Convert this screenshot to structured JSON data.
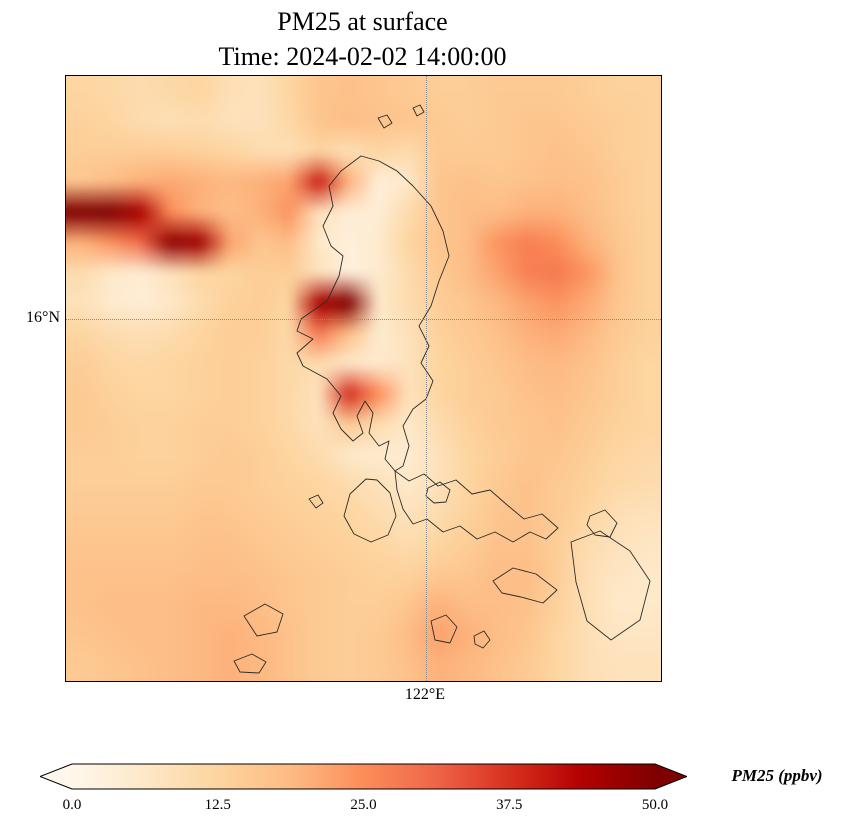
{
  "title": {
    "line1": "PM25 at surface",
    "line2": "Time: 2024-02-02 14:00:00"
  },
  "axes": {
    "ytick": "16°N",
    "xtick": "122°E"
  },
  "colorbar": {
    "label": "PM25 (ppbv)",
    "ticks": [
      "0.0",
      "12.5",
      "25.0",
      "37.5",
      "50.0"
    ],
    "min": 0,
    "max": 50,
    "extend": "both"
  },
  "chart_data": {
    "type": "heatmap",
    "title": "PM25 at surface",
    "subtitle": "Time: 2024-02-02 14:00:00",
    "variable": "PM25",
    "units": "ppbv",
    "colormap": "OrRd",
    "colormap_stops": [
      [
        0.0,
        "#fff7ec"
      ],
      [
        0.125,
        "#fee8c8"
      ],
      [
        0.25,
        "#fdd49e"
      ],
      [
        0.375,
        "#fdbb84"
      ],
      [
        0.5,
        "#fc8d59"
      ],
      [
        0.625,
        "#ef6548"
      ],
      [
        0.75,
        "#d7301f"
      ],
      [
        0.875,
        "#b30000"
      ],
      [
        1.0,
        "#7f0000"
      ]
    ],
    "coastline_color": "#2b2b2b",
    "vmin": 0,
    "vmax": 50,
    "gridlines": {
      "lat_label": "16°N",
      "lat_frac_from_top": 0.402,
      "lon_label": "122°E",
      "lon_frac_from_left": 0.605
    },
    "grid_shape": [
      20,
      20
    ],
    "values": [
      [
        12,
        11,
        10,
        11,
        12,
        9,
        8,
        12,
        16,
        17,
        16,
        15,
        14,
        14,
        15,
        15,
        15,
        14,
        13,
        13
      ],
      [
        13,
        12,
        10,
        9,
        10,
        8,
        8,
        11,
        16,
        18,
        17,
        16,
        15,
        14,
        15,
        16,
        16,
        15,
        14,
        13
      ],
      [
        14,
        14,
        14,
        14,
        13,
        12,
        10,
        9,
        12,
        9,
        12,
        10,
        15,
        15,
        15,
        16,
        17,
        16,
        14,
        13
      ],
      [
        16,
        18,
        20,
        21,
        20,
        19,
        20,
        22,
        40,
        20,
        3,
        6,
        16,
        17,
        16,
        17,
        18,
        17,
        15,
        13
      ],
      [
        50,
        54,
        45,
        25,
        20,
        18,
        20,
        24,
        8,
        4,
        4,
        10,
        16,
        18,
        18,
        20,
        20,
        18,
        15,
        13
      ],
      [
        20,
        24,
        30,
        48,
        46,
        22,
        16,
        18,
        6,
        3,
        5,
        12,
        16,
        18,
        24,
        27,
        25,
        20,
        16,
        13
      ],
      [
        10,
        6,
        4,
        8,
        12,
        12,
        14,
        14,
        8,
        3,
        5,
        10,
        15,
        18,
        22,
        27,
        28,
        24,
        17,
        13
      ],
      [
        8,
        5,
        4,
        6,
        10,
        13,
        14,
        12,
        45,
        50,
        6,
        10,
        14,
        16,
        19,
        22,
        24,
        21,
        16,
        13
      ],
      [
        12,
        10,
        9,
        10,
        12,
        14,
        14,
        11,
        28,
        18,
        5,
        8,
        13,
        15,
        17,
        20,
        21,
        19,
        15,
        13
      ],
      [
        14,
        12,
        11,
        12,
        13,
        14,
        13,
        11,
        10,
        6,
        5,
        8,
        12,
        14,
        16,
        18,
        19,
        17,
        14,
        12
      ],
      [
        15,
        13,
        12,
        12,
        13,
        14,
        13,
        11,
        8,
        38,
        25,
        8,
        12,
        14,
        15,
        17,
        18,
        16,
        14,
        12
      ],
      [
        15,
        14,
        13,
        13,
        14,
        14,
        13,
        11,
        8,
        15,
        10,
        6,
        10,
        13,
        15,
        16,
        17,
        15,
        13,
        12
      ],
      [
        14,
        14,
        13,
        13,
        14,
        15,
        14,
        12,
        10,
        6,
        5,
        5,
        8,
        12,
        14,
        16,
        16,
        14,
        12,
        11
      ],
      [
        14,
        14,
        14,
        14,
        15,
        15,
        14,
        13,
        12,
        10,
        8,
        6,
        8,
        12,
        15,
        17,
        15,
        13,
        11,
        10
      ],
      [
        15,
        15,
        15,
        15,
        16,
        16,
        15,
        14,
        13,
        12,
        10,
        8,
        10,
        13,
        16,
        17,
        15,
        12,
        9,
        8
      ],
      [
        16,
        16,
        16,
        16,
        17,
        17,
        16,
        15,
        14,
        13,
        12,
        10,
        12,
        14,
        17,
        17,
        14,
        10,
        8,
        7
      ],
      [
        17,
        17,
        17,
        17,
        18,
        18,
        17,
        16,
        15,
        14,
        13,
        13,
        15,
        16,
        18,
        18,
        14,
        9,
        7,
        6
      ],
      [
        17,
        18,
        18,
        18,
        19,
        19,
        18,
        16,
        15,
        14,
        14,
        16,
        20,
        18,
        18,
        17,
        13,
        9,
        6,
        6
      ],
      [
        16,
        17,
        18,
        18,
        19,
        20,
        19,
        17,
        15,
        14,
        15,
        18,
        22,
        20,
        18,
        16,
        12,
        9,
        7,
        7
      ],
      [
        15,
        16,
        17,
        18,
        19,
        20,
        19,
        17,
        15,
        14,
        15,
        17,
        20,
        19,
        17,
        15,
        12,
        9,
        8,
        8
      ]
    ]
  }
}
